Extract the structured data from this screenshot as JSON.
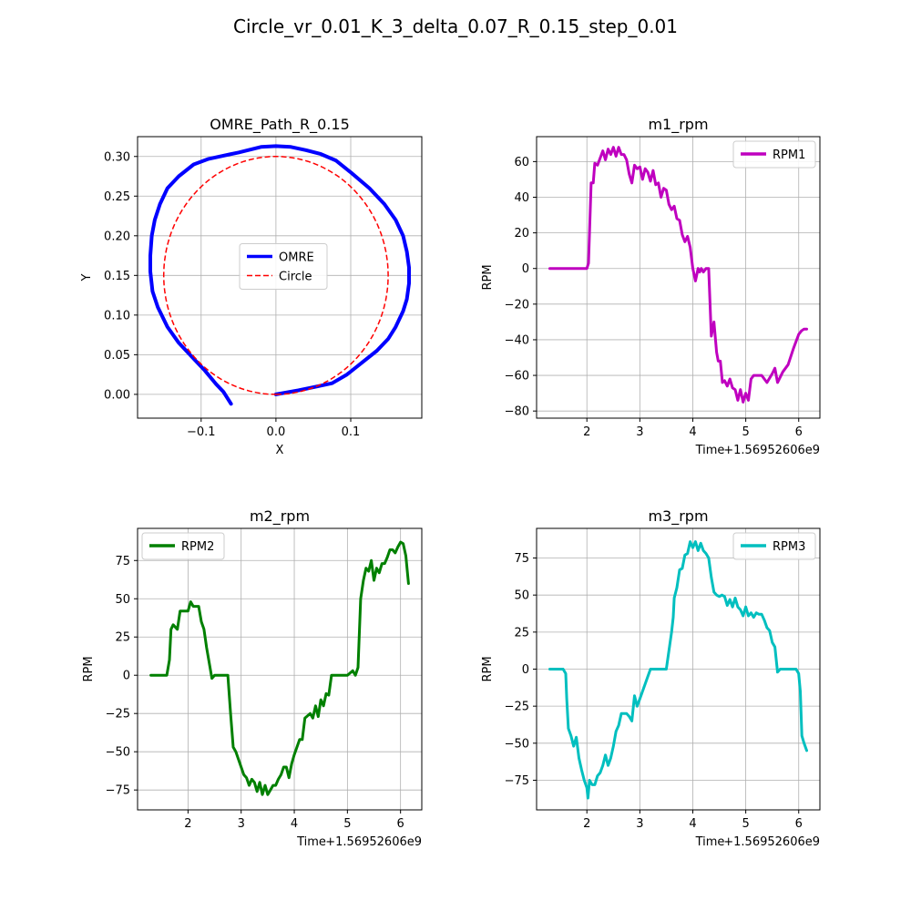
{
  "figure": {
    "suptitle": "Circle_vr_0.01_K_3_delta_0.07_R_0.15_step_0.01"
  },
  "colors": {
    "omre": "#0000ff",
    "circle": "#ff0000",
    "rpm1": "#bf00bf",
    "rpm2": "#008000",
    "rpm3": "#00bfbf",
    "grid": "#b0b0b0"
  },
  "chart_data": [
    {
      "id": "path",
      "type": "line",
      "title": "OMRE_Path_R_0.15",
      "xlabel": "X",
      "ylabel": "Y",
      "xlim": [
        -0.185,
        0.195
      ],
      "ylim": [
        -0.03,
        0.325
      ],
      "xticks": [
        -0.1,
        0.0,
        0.1
      ],
      "xtick_labels": [
        "−0.1",
        "0.0",
        "0.1"
      ],
      "yticks": [
        0.0,
        0.05,
        0.1,
        0.15,
        0.2,
        0.25,
        0.3
      ],
      "ytick_labels": [
        "0.00",
        "0.05",
        "0.10",
        "0.15",
        "0.20",
        "0.25",
        "0.30"
      ],
      "grid": true,
      "legend": "center",
      "series": [
        {
          "name": "OMRE",
          "style": "solid",
          "color": "#0000ff",
          "width": 4,
          "x": [
            0.0,
            0.03,
            0.055,
            0.075,
            0.095,
            0.115,
            0.135,
            0.15,
            0.16,
            0.17,
            0.175,
            0.178,
            0.178,
            0.175,
            0.17,
            0.16,
            0.145,
            0.125,
            0.1,
            0.08,
            0.06,
            0.04,
            0.02,
            0.0,
            -0.02,
            -0.05,
            -0.09,
            -0.11,
            -0.13,
            -0.145,
            -0.155,
            -0.162,
            -0.166,
            -0.168,
            -0.168,
            -0.165,
            -0.158,
            -0.145,
            -0.13,
            -0.11,
            -0.095,
            -0.08,
            -0.07,
            -0.06
          ],
          "y": [
            0.0,
            0.005,
            0.01,
            0.014,
            0.025,
            0.04,
            0.055,
            0.07,
            0.085,
            0.105,
            0.12,
            0.14,
            0.16,
            0.18,
            0.2,
            0.22,
            0.24,
            0.26,
            0.28,
            0.295,
            0.303,
            0.308,
            0.312,
            0.313,
            0.312,
            0.305,
            0.297,
            0.29,
            0.275,
            0.26,
            0.24,
            0.22,
            0.2,
            0.175,
            0.155,
            0.13,
            0.11,
            0.085,
            0.065,
            0.045,
            0.03,
            0.013,
            0.003,
            -0.012
          ]
        },
        {
          "name": "Circle",
          "style": "dashed",
          "color": "#ff0000",
          "width": 1.5,
          "center": [
            0.0,
            0.15
          ],
          "radius": 0.15
        }
      ]
    },
    {
      "id": "m1",
      "type": "line",
      "title": "m1_rpm",
      "xlabel": "Time",
      "ylabel": "RPM",
      "offset_label": "+1.56952606e9",
      "xlim": [
        1.05,
        6.4
      ],
      "ylim": [
        -84,
        74
      ],
      "xticks": [
        2,
        3,
        4,
        5,
        6
      ],
      "xtick_labels": [
        "2",
        "3",
        "4",
        "5",
        "6"
      ],
      "yticks": [
        -80,
        -60,
        -40,
        -20,
        0,
        20,
        40,
        60
      ],
      "ytick_labels": [
        "−80",
        "−60",
        "−40",
        "−20",
        "0",
        "20",
        "40",
        "60"
      ],
      "grid": true,
      "legend": "upper right",
      "series": [
        {
          "name": "RPM1",
          "color": "#bf00bf",
          "width": 3,
          "x": [
            1.3,
            1.5,
            1.7,
            1.9,
            2.0,
            2.03,
            2.08,
            2.12,
            2.15,
            2.2,
            2.25,
            2.3,
            2.35,
            2.4,
            2.45,
            2.5,
            2.55,
            2.6,
            2.65,
            2.7,
            2.75,
            2.8,
            2.85,
            2.9,
            2.95,
            3.0,
            3.05,
            3.1,
            3.15,
            3.2,
            3.25,
            3.3,
            3.35,
            3.4,
            3.45,
            3.5,
            3.55,
            3.6,
            3.65,
            3.7,
            3.75,
            3.8,
            3.85,
            3.9,
            3.95,
            4.0,
            4.05,
            4.1,
            4.13,
            4.16,
            4.2,
            4.25,
            4.3,
            4.35,
            4.4,
            4.45,
            4.48,
            4.52,
            4.56,
            4.6,
            4.65,
            4.7,
            4.75,
            4.8,
            4.85,
            4.9,
            4.95,
            5.0,
            5.05,
            5.1,
            5.15,
            5.2,
            5.3,
            5.4,
            5.5,
            5.55,
            5.6,
            5.7,
            5.8,
            5.9,
            6.0,
            6.05,
            6.1,
            6.15
          ],
          "y": [
            0,
            0,
            0,
            0,
            0,
            3,
            48,
            48,
            59,
            58,
            62,
            66,
            61,
            67,
            64,
            68,
            63,
            68,
            64,
            64,
            61,
            53,
            48,
            58,
            56,
            57,
            50,
            56,
            54,
            49,
            55,
            47,
            48,
            40,
            45,
            44,
            36,
            33,
            35,
            28,
            27,
            19,
            15,
            18,
            12,
            0,
            -7,
            0,
            -2,
            0,
            -2,
            0,
            0,
            -38,
            -30,
            -47,
            -52,
            -52,
            -64,
            -63,
            -66,
            -62,
            -67,
            -68,
            -74,
            -68,
            -75,
            -70,
            -74,
            -62,
            -60,
            -60,
            -60,
            -64,
            -59,
            -56,
            -64,
            -58,
            -54,
            -45,
            -37,
            -35,
            -34,
            -34
          ]
        }
      ]
    },
    {
      "id": "m2",
      "type": "line",
      "title": "m2_rpm",
      "xlabel": "Time",
      "ylabel": "RPM",
      "offset_label": "+1.56952606e9",
      "xlim": [
        1.05,
        6.4
      ],
      "ylim": [
        -88,
        96
      ],
      "xticks": [
        2,
        3,
        4,
        5,
        6
      ],
      "xtick_labels": [
        "2",
        "3",
        "4",
        "5",
        "6"
      ],
      "yticks": [
        -75,
        -50,
        -25,
        0,
        25,
        50,
        75
      ],
      "ytick_labels": [
        "−75",
        "−50",
        "−25",
        "0",
        "25",
        "50",
        "75"
      ],
      "grid": true,
      "legend": "upper left",
      "series": [
        {
          "name": "RPM2",
          "color": "#008000",
          "width": 3,
          "x": [
            1.3,
            1.5,
            1.6,
            1.65,
            1.68,
            1.72,
            1.8,
            1.85,
            1.9,
            2.0,
            2.05,
            2.1,
            2.2,
            2.25,
            2.3,
            2.35,
            2.4,
            2.45,
            2.5,
            2.55,
            2.6,
            2.75,
            2.8,
            2.85,
            2.9,
            3.0,
            3.05,
            3.1,
            3.15,
            3.2,
            3.25,
            3.3,
            3.35,
            3.4,
            3.45,
            3.5,
            3.55,
            3.6,
            3.65,
            3.7,
            3.75,
            3.8,
            3.85,
            3.9,
            3.95,
            4.0,
            4.1,
            4.15,
            4.2,
            4.3,
            4.35,
            4.4,
            4.45,
            4.5,
            4.55,
            4.6,
            4.65,
            4.7,
            4.8,
            4.9,
            5.0,
            5.1,
            5.15,
            5.2,
            5.25,
            5.3,
            5.35,
            5.4,
            5.45,
            5.5,
            5.55,
            5.6,
            5.65,
            5.7,
            5.75,
            5.8,
            5.85,
            5.9,
            5.95,
            6.0,
            6.05,
            6.1,
            6.15
          ],
          "y": [
            0,
            0,
            0,
            10,
            30,
            33,
            30,
            42,
            42,
            42,
            48,
            45,
            45,
            35,
            30,
            18,
            8,
            -2,
            0,
            0,
            0,
            0,
            -25,
            -47,
            -50,
            -60,
            -65,
            -67,
            -72,
            -68,
            -70,
            -76,
            -70,
            -78,
            -72,
            -78,
            -75,
            -72,
            -72,
            -68,
            -65,
            -60,
            -60,
            -67,
            -58,
            -52,
            -42,
            -42,
            -28,
            -25,
            -28,
            -20,
            -27,
            -16,
            -20,
            -12,
            -13,
            0,
            0,
            0,
            0,
            3,
            0,
            5,
            50,
            62,
            70,
            68,
            75,
            62,
            70,
            67,
            73,
            73,
            77,
            82,
            82,
            80,
            84,
            87,
            86,
            78,
            60
          ]
        }
      ]
    },
    {
      "id": "m3",
      "type": "line",
      "title": "m3_rpm",
      "xlabel": "Time",
      "ylabel": "RPM",
      "offset_label": "+1.56952606e9",
      "xlim": [
        1.05,
        6.4
      ],
      "ylim": [
        -95,
        95
      ],
      "xticks": [
        2,
        3,
        4,
        5,
        6
      ],
      "xtick_labels": [
        "2",
        "3",
        "4",
        "5",
        "6"
      ],
      "yticks": [
        -75,
        -50,
        -25,
        0,
        25,
        50,
        75
      ],
      "ytick_labels": [
        "−75",
        "−50",
        "−25",
        "0",
        "25",
        "50",
        "75"
      ],
      "grid": true,
      "legend": "upper right",
      "series": [
        {
          "name": "RPM3",
          "color": "#00bfbf",
          "width": 3,
          "x": [
            1.3,
            1.5,
            1.55,
            1.6,
            1.62,
            1.65,
            1.7,
            1.75,
            1.8,
            1.85,
            1.9,
            1.95,
            2.0,
            2.02,
            2.05,
            2.1,
            2.15,
            2.2,
            2.25,
            2.3,
            2.35,
            2.4,
            2.45,
            2.5,
            2.55,
            2.6,
            2.65,
            2.7,
            2.75,
            2.8,
            2.85,
            2.9,
            2.95,
            3.0,
            3.05,
            3.1,
            3.15,
            3.2,
            3.25,
            3.3,
            3.35,
            3.4,
            3.5,
            3.6,
            3.63,
            3.65,
            3.7,
            3.75,
            3.8,
            3.85,
            3.9,
            3.95,
            4.0,
            4.05,
            4.1,
            4.15,
            4.2,
            4.25,
            4.3,
            4.35,
            4.4,
            4.45,
            4.5,
            4.55,
            4.6,
            4.65,
            4.7,
            4.75,
            4.8,
            4.85,
            4.9,
            4.95,
            5.0,
            5.05,
            5.1,
            5.15,
            5.2,
            5.25,
            5.3,
            5.35,
            5.4,
            5.45,
            5.5,
            5.55,
            5.6,
            5.65,
            5.7,
            5.8,
            5.9,
            5.95,
            6.0,
            6.03,
            6.06,
            6.1,
            6.15
          ],
          "y": [
            0,
            0,
            0,
            -3,
            -20,
            -40,
            -45,
            -52,
            -46,
            -60,
            -68,
            -75,
            -80,
            -87,
            -75,
            -78,
            -78,
            -72,
            -70,
            -65,
            -58,
            -65,
            -60,
            -52,
            -42,
            -38,
            -30,
            -30,
            -30,
            -32,
            -35,
            -18,
            -25,
            -20,
            -15,
            -10,
            -5,
            0,
            0,
            0,
            0,
            0,
            0,
            25,
            35,
            48,
            55,
            67,
            68,
            77,
            78,
            86,
            82,
            86,
            80,
            85,
            80,
            78,
            75,
            62,
            52,
            50,
            49,
            50,
            49,
            43,
            47,
            42,
            48,
            42,
            40,
            36,
            42,
            36,
            38,
            35,
            38,
            37,
            37,
            33,
            28,
            26,
            18,
            15,
            -2,
            0,
            0,
            0,
            0,
            0,
            -3,
            -15,
            -45,
            -50,
            -55
          ]
        }
      ]
    }
  ]
}
